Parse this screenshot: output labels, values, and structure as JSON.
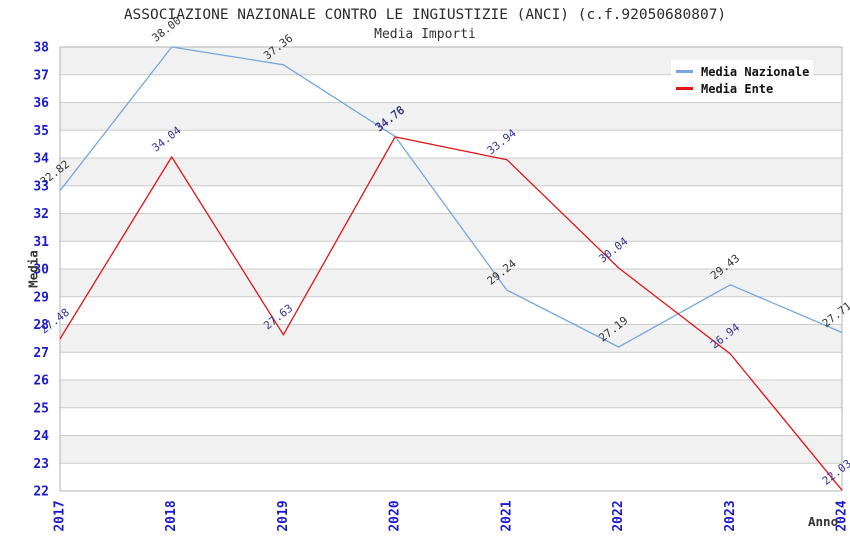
{
  "header": {
    "title": "ASSOCIAZIONE NAZIONALE CONTRO LE INGIUSTIZIE (ANCI) (c.f.92050680807)",
    "subtitle": "Media Importi"
  },
  "legend": {
    "items": [
      {
        "label": "Media Nazionale",
        "color": "#74A7DF"
      },
      {
        "label": "Media Ente",
        "color": "#E01414"
      }
    ]
  },
  "axes": {
    "y_label": "Media",
    "x_label": "Anno",
    "tick_color": "#1A1ACD",
    "y_ticks": [
      22,
      23,
      24,
      25,
      26,
      27,
      28,
      29,
      30,
      31,
      32,
      33,
      34,
      35,
      36,
      37,
      38
    ]
  },
  "style": {
    "band_fill": "#f1f1f1",
    "grid_color": "#cccccc",
    "border_color": "#b3b3b3",
    "nazionale_label_color": "#333333",
    "ente_label_color": "#333399"
  },
  "chart_data": {
    "type": "line",
    "title": "ASSOCIAZIONE NAZIONALE CONTRO LE INGIUSTIZIE (ANCI) (c.f.92050680807)",
    "subtitle": "Media Importi",
    "categories": [
      "2017",
      "2018",
      "2019",
      "2020",
      "2021",
      "2022",
      "2023",
      "2024"
    ],
    "series": [
      {
        "name": "Media Nazionale",
        "color": "#74A7DF",
        "label_color": "#333333",
        "values": [
          32.82,
          38.0,
          37.36,
          34.78,
          29.24,
          27.19,
          29.43,
          27.71
        ]
      },
      {
        "name": "Media Ente",
        "color": "#E01414",
        "label_color": "#333399",
        "values": [
          27.48,
          34.04,
          27.63,
          34.76,
          33.94,
          30.04,
          26.94,
          22.03
        ]
      }
    ],
    "xlabel": "Anno",
    "ylabel": "Media",
    "ylim": [
      22,
      38
    ],
    "y_step": 1,
    "grid": true,
    "alternating_bands": true,
    "legend_position": "top-right",
    "point_labels": "two-decimals-rotated"
  }
}
